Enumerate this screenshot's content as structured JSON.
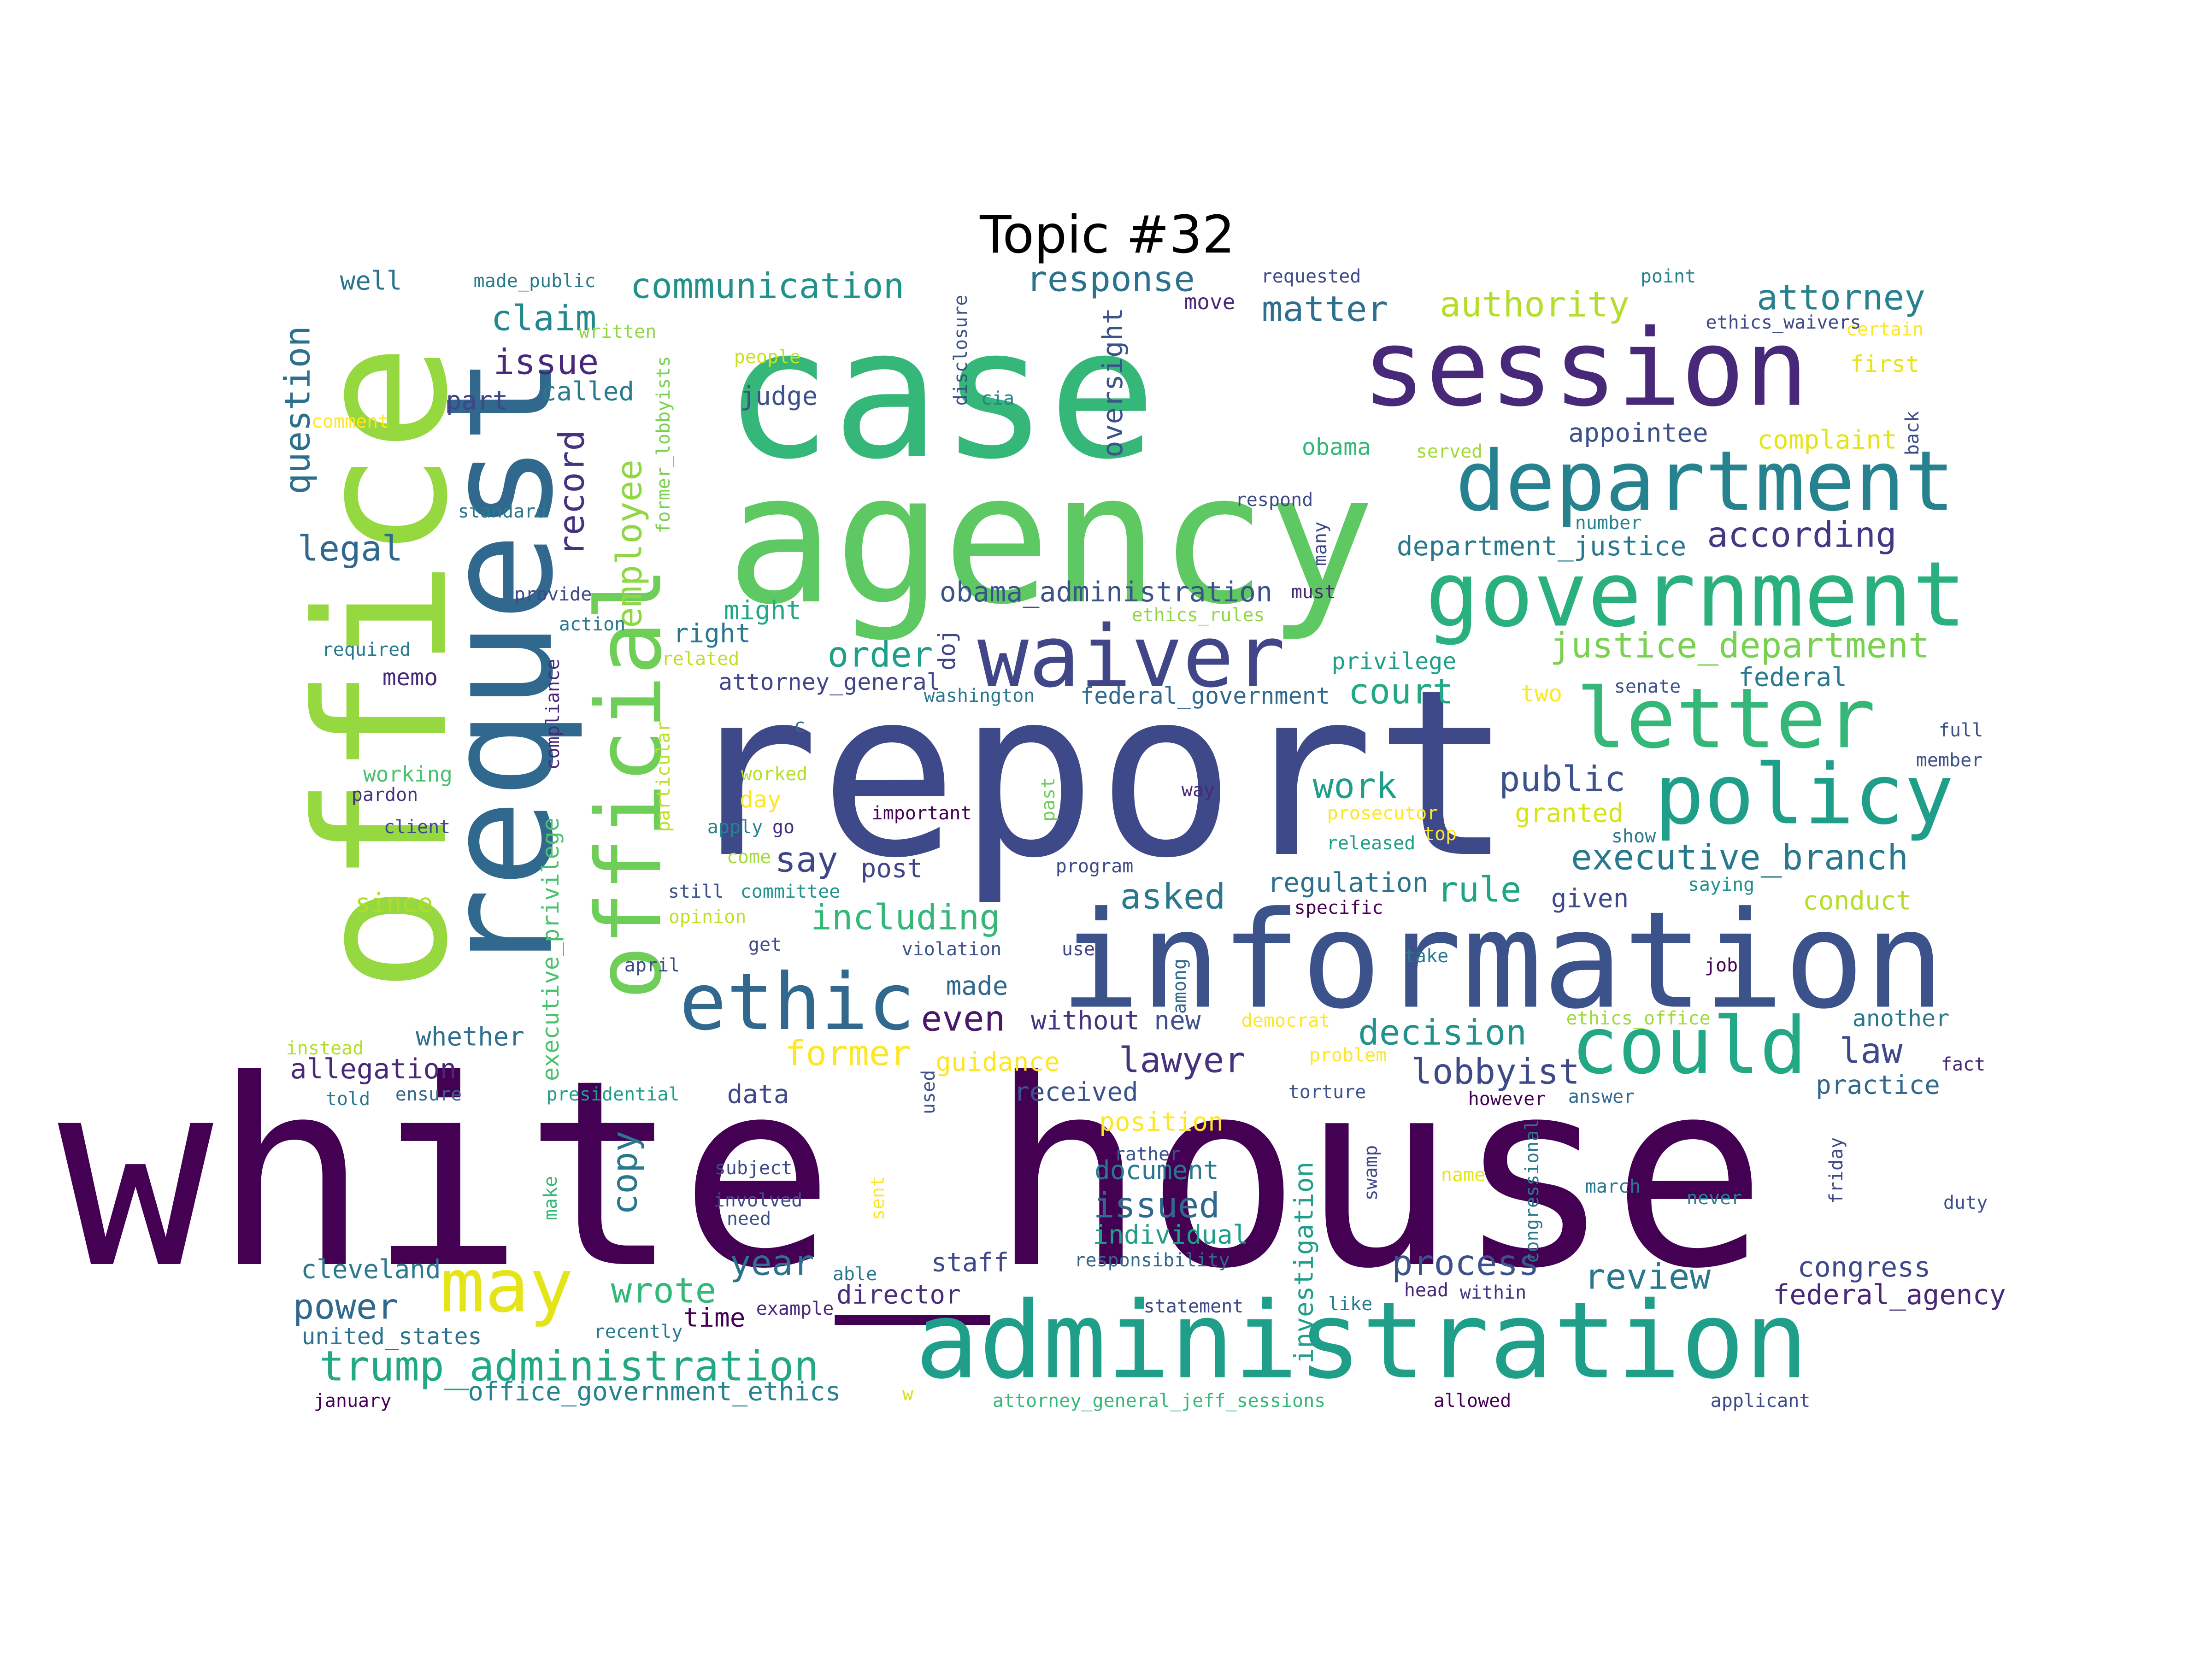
{
  "title": "Topic #32",
  "palette": [
    "#440154",
    "#482878",
    "#3e4989",
    "#31688e",
    "#26828e",
    "#1f9e89",
    "#35b779",
    "#6ece58",
    "#b5de2b",
    "#fde725"
  ],
  "words": [
    {
      "text": "white_house",
      "color": "#440154"
    },
    {
      "text": "report",
      "color": "#3e4989"
    },
    {
      "text": "case",
      "color": "#35b779"
    },
    {
      "text": "agency",
      "color": "#5ec962"
    },
    {
      "text": "office",
      "color": "#95d840"
    },
    {
      "text": "information",
      "color": "#3b528b"
    },
    {
      "text": "request",
      "color": "#31688e"
    },
    {
      "text": "session",
      "color": "#482878"
    },
    {
      "text": "administration",
      "color": "#1f9e89"
    },
    {
      "text": "department",
      "color": "#26828e"
    },
    {
      "text": "government",
      "color": "#2ab07f"
    },
    {
      "text": "official",
      "color": "#6ece58"
    },
    {
      "text": "waiver",
      "color": "#404688"
    },
    {
      "text": "letter",
      "color": "#35b779"
    },
    {
      "text": "policy",
      "color": "#1f9e89"
    },
    {
      "text": "could",
      "color": "#22a884"
    },
    {
      "text": "ethic",
      "color": "#31688e"
    },
    {
      "text": "may",
      "color": "#e5e419"
    },
    {
      "text": "communication",
      "color": "#21918c"
    },
    {
      "text": "response",
      "color": "#2c728e"
    },
    {
      "text": "authority",
      "color": "#b5de2b"
    },
    {
      "text": "attorney",
      "color": "#26828e"
    },
    {
      "text": "matter",
      "color": "#2d708e"
    },
    {
      "text": "claim",
      "color": "#23888e"
    },
    {
      "text": "issue",
      "color": "#482878"
    },
    {
      "text": "question",
      "color": "#2d708e"
    },
    {
      "text": "record",
      "color": "#46327e"
    },
    {
      "text": "employee",
      "color": "#8fd744"
    },
    {
      "text": "legal",
      "color": "#31688e"
    },
    {
      "text": "oversight",
      "color": "#3b528b"
    },
    {
      "text": "according",
      "color": "#453781"
    },
    {
      "text": "justice_department",
      "color": "#7ad151"
    },
    {
      "text": "department_justice",
      "color": "#2a788e"
    },
    {
      "text": "obama_administration",
      "color": "#3b528b"
    },
    {
      "text": "order",
      "color": "#1f9e89"
    },
    {
      "text": "court",
      "color": "#22a884"
    },
    {
      "text": "work",
      "color": "#1f9e89"
    },
    {
      "text": "public",
      "color": "#3b528b"
    },
    {
      "text": "executive_branch",
      "color": "#2a788e"
    },
    {
      "text": "rule",
      "color": "#20a486"
    },
    {
      "text": "regulation",
      "color": "#2c728e"
    },
    {
      "text": "including",
      "color": "#35b779"
    },
    {
      "text": "asked",
      "color": "#2a788e"
    },
    {
      "text": "say",
      "color": "#404688"
    },
    {
      "text": "post",
      "color": "#414487"
    },
    {
      "text": "former",
      "color": "#fde725"
    },
    {
      "text": "lawyer",
      "color": "#46327e"
    },
    {
      "text": "even",
      "color": "#48186a"
    },
    {
      "text": "decision",
      "color": "#21918c"
    },
    {
      "text": "lobbyist",
      "color": "#3e4989"
    },
    {
      "text": "law",
      "color": "#3e4989"
    },
    {
      "text": "practice",
      "color": "#31688e"
    },
    {
      "text": "executive_privilege",
      "color": "#4ac16d"
    },
    {
      "text": "allegation",
      "color": "#482878"
    },
    {
      "text": "trump_administration",
      "color": "#22a884"
    },
    {
      "text": "office_government_ethics",
      "color": "#26828e"
    },
    {
      "text": "power",
      "color": "#31688e"
    },
    {
      "text": "wrote",
      "color": "#35b779"
    },
    {
      "text": "year",
      "color": "#2c728e"
    },
    {
      "text": "review",
      "color": "#2a788e"
    },
    {
      "text": "process",
      "color": "#3b528b"
    },
    {
      "text": "congress",
      "color": "#3e4989"
    },
    {
      "text": "federal_agency",
      "color": "#482878"
    },
    {
      "text": "issued",
      "color": "#31688e"
    },
    {
      "text": "individual",
      "color": "#1f9e89"
    },
    {
      "text": "document",
      "color": "#2a788e"
    },
    {
      "text": "position",
      "color": "#fde725"
    },
    {
      "text": "received",
      "color": "#3b528b"
    },
    {
      "text": "guidance",
      "color": "#fde725"
    },
    {
      "text": "copy",
      "color": "#2a788e"
    },
    {
      "text": "data",
      "color": "#3e4989"
    },
    {
      "text": "investigation",
      "color": "#1f9e89"
    },
    {
      "text": "cleveland",
      "color": "#2a788e"
    },
    {
      "text": "united_states",
      "color": "#2c728e"
    },
    {
      "text": "staff",
      "color": "#3e4989"
    },
    {
      "text": "director",
      "color": "#472d7b"
    },
    {
      "text": "time",
      "color": "#440154"
    },
    {
      "text": "privilege",
      "color": "#1f9e89"
    },
    {
      "text": "attorney_general",
      "color": "#414487"
    },
    {
      "text": "federal_government",
      "color": "#31688e"
    },
    {
      "text": "federal",
      "color": "#2a788e"
    },
    {
      "text": "two",
      "color": "#fde725"
    },
    {
      "text": "granted",
      "color": "#d8e219"
    },
    {
      "text": "conduct",
      "color": "#b5de2b"
    },
    {
      "text": "given",
      "color": "#3e4989"
    },
    {
      "text": "another",
      "color": "#2a788e"
    },
    {
      "text": "appointee",
      "color": "#3b528b"
    },
    {
      "text": "complaint",
      "color": "#e5e419"
    },
    {
      "text": "obama",
      "color": "#35b779"
    },
    {
      "text": "made",
      "color": "#31688e"
    },
    {
      "text": "without",
      "color": "#46327e"
    },
    {
      "text": "new",
      "color": "#3b528b"
    },
    {
      "text": "whether",
      "color": "#2d708e"
    },
    {
      "text": "since",
      "color": "#addc30"
    },
    {
      "text": "might",
      "color": "#22a884"
    },
    {
      "text": "right",
      "color": "#2a788e"
    },
    {
      "text": "doj",
      "color": "#404688"
    },
    {
      "text": "part",
      "color": "#414487"
    },
    {
      "text": "called",
      "color": "#2a788e"
    },
    {
      "text": "judge",
      "color": "#3b528b"
    },
    {
      "text": "well",
      "color": "#2c728e"
    },
    {
      "text": "memo",
      "color": "#482878"
    },
    {
      "text": "day",
      "color": "#fde725"
    },
    {
      "text": "first",
      "color": "#e5e419"
    },
    {
      "text": "move",
      "color": "#482878"
    },
    {
      "text": "made_public",
      "color": "#2a788e"
    },
    {
      "text": "requested",
      "color": "#3e4989"
    },
    {
      "text": "point",
      "color": "#26828e"
    },
    {
      "text": "written",
      "color": "#90d743"
    },
    {
      "text": "people",
      "color": "#c8e020"
    },
    {
      "text": "disclosure",
      "color": "#3b528b"
    },
    {
      "text": "cia",
      "color": "#26828e"
    },
    {
      "text": "ethics_waivers",
      "color": "#3e4989"
    },
    {
      "text": "certain",
      "color": "#fde725"
    },
    {
      "text": "comment",
      "color": "#fde725"
    },
    {
      "text": "former_lobbyists",
      "color": "#7ad151"
    },
    {
      "text": "served",
      "color": "#a0da39"
    },
    {
      "text": "back",
      "color": "#3e4989"
    },
    {
      "text": "standard",
      "color": "#2a788e"
    },
    {
      "text": "respond",
      "color": "#3e4989"
    },
    {
      "text": "number",
      "color": "#26828e"
    },
    {
      "text": "many",
      "color": "#3e4989"
    },
    {
      "text": "provide",
      "color": "#3e4989"
    },
    {
      "text": "must",
      "color": "#482878"
    },
    {
      "text": "action",
      "color": "#2a788e"
    },
    {
      "text": "ethics_rules",
      "color": "#90d743"
    },
    {
      "text": "required",
      "color": "#2a788e"
    },
    {
      "text": "related",
      "color": "#bddf26"
    },
    {
      "text": "compliance",
      "color": "#482878"
    },
    {
      "text": "washington",
      "color": "#2a788e"
    },
    {
      "text": "senate",
      "color": "#3b528b"
    },
    {
      "text": "full",
      "color": "#3b528b"
    },
    {
      "text": "working",
      "color": "#4ac16d"
    },
    {
      "text": "pardon",
      "color": "#46327e"
    },
    {
      "text": "particular",
      "color": "#bddf26"
    },
    {
      "text": "c",
      "color": "#31688e"
    },
    {
      "text": "worked",
      "color": "#b5de2b"
    },
    {
      "text": "past",
      "color": "#6ece58"
    },
    {
      "text": "member",
      "color": "#3b528b"
    },
    {
      "text": "client",
      "color": "#3e4989"
    },
    {
      "text": "important",
      "color": "#440154"
    },
    {
      "text": "way",
      "color": "#482878"
    },
    {
      "text": "prosecutor",
      "color": "#fde725"
    },
    {
      "text": "apply",
      "color": "#26828e"
    },
    {
      "text": "go",
      "color": "#472d7b"
    },
    {
      "text": "show",
      "color": "#2a788e"
    },
    {
      "text": "top",
      "color": "#fde725"
    },
    {
      "text": "released",
      "color": "#1f9e89"
    },
    {
      "text": "come",
      "color": "#a0da39"
    },
    {
      "text": "program",
      "color": "#3e4989"
    },
    {
      "text": "still",
      "color": "#3b528b"
    },
    {
      "text": "committee",
      "color": "#21918c"
    },
    {
      "text": "specific",
      "color": "#440154"
    },
    {
      "text": "saying",
      "color": "#21918c"
    },
    {
      "text": "opinion",
      "color": "#bddf26"
    },
    {
      "text": "get",
      "color": "#3e4989"
    },
    {
      "text": "violation",
      "color": "#3b528b"
    },
    {
      "text": "use",
      "color": "#414487"
    },
    {
      "text": "among",
      "color": "#31688e"
    },
    {
      "text": "take",
      "color": "#2a788e"
    },
    {
      "text": "april",
      "color": "#3e4989"
    },
    {
      "text": "job",
      "color": "#440154"
    },
    {
      "text": "democrat",
      "color": "#fde725"
    },
    {
      "text": "ethics_office",
      "color": "#a0da39"
    },
    {
      "text": "instead",
      "color": "#b5de2b"
    },
    {
      "text": "problem",
      "color": "#fde725"
    },
    {
      "text": "fact",
      "color": "#482878"
    },
    {
      "text": "told",
      "color": "#2a788e"
    },
    {
      "text": "ensure",
      "color": "#31688e"
    },
    {
      "text": "presidential",
      "color": "#1f9e89"
    },
    {
      "text": "used",
      "color": "#3b528b"
    },
    {
      "text": "torture",
      "color": "#3b528b"
    },
    {
      "text": "however",
      "color": "#440154"
    },
    {
      "text": "answer",
      "color": "#31688e"
    },
    {
      "text": "friday",
      "color": "#3e4989"
    },
    {
      "text": "rather",
      "color": "#3b528b"
    },
    {
      "text": "subject",
      "color": "#3e4989"
    },
    {
      "text": "congressional",
      "color": "#2a788e"
    },
    {
      "text": "name",
      "color": "#e5e419"
    },
    {
      "text": "march",
      "color": "#2a788e"
    },
    {
      "text": "swamp",
      "color": "#3e4989"
    },
    {
      "text": "never",
      "color": "#26828e"
    },
    {
      "text": "duty",
      "color": "#3b528b"
    },
    {
      "text": "make",
      "color": "#35b779"
    },
    {
      "text": "involved",
      "color": "#3e4989"
    },
    {
      "text": "need",
      "color": "#3b528b"
    },
    {
      "text": "sent",
      "color": "#fde725"
    },
    {
      "text": "able",
      "color": "#2a788e"
    },
    {
      "text": "responsibility",
      "color": "#31688e"
    },
    {
      "text": "statement",
      "color": "#3e4989"
    },
    {
      "text": "like",
      "color": "#2a788e"
    },
    {
      "text": "head",
      "color": "#482878"
    },
    {
      "text": "within",
      "color": "#46327e"
    },
    {
      "text": "example",
      "color": "#482878"
    },
    {
      "text": "recently",
      "color": "#2a788e"
    },
    {
      "text": "january",
      "color": "#440154"
    },
    {
      "text": "w",
      "color": "#d8e219"
    },
    {
      "text": "attorney_general_jeff_sessions",
      "color": "#35b779"
    },
    {
      "text": "allowed",
      "color": "#440154"
    },
    {
      "text": "applicant",
      "color": "#3e4989"
    }
  ]
}
